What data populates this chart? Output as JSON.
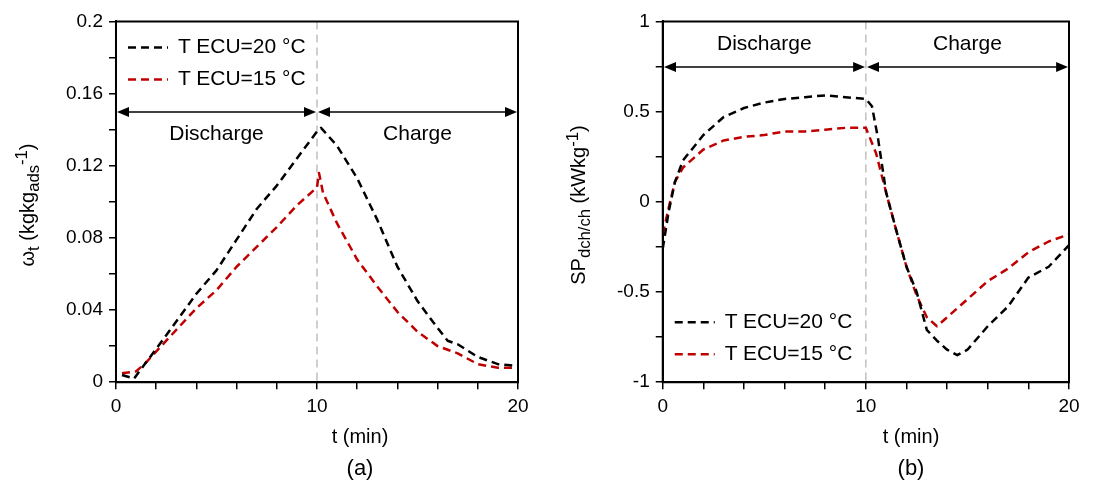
{
  "chart_data": [
    {
      "type": "line",
      "title": "(a)",
      "xlabel": "t (min)",
      "ylabel": "ω$_{t}$ (kgkg$_{ads}$$^{-1}$)",
      "xlim": [
        0,
        20
      ],
      "xticks": [
        0,
        {
          "value": 2,
          "label": null
        },
        {
          "value": 4,
          "label": null
        },
        {
          "value": 6,
          "label": null
        },
        {
          "value": 8,
          "label": null
        },
        10,
        {
          "value": 12,
          "label": null
        },
        {
          "value": 14,
          "label": null
        },
        {
          "value": 16,
          "label": null
        },
        {
          "value": 18,
          "label": null
        },
        20
      ],
      "ylim": [
        0,
        0.2
      ],
      "yticks": [
        0,
        {
          "value": 0.02,
          "label": null
        },
        0.04,
        {
          "value": 0.06,
          "label": null
        },
        0.08,
        {
          "value": 0.1,
          "label": null
        },
        0.12,
        {
          "value": 0.14,
          "label": null
        },
        0.16,
        {
          "value": 0.18,
          "label": null
        },
        0.2
      ],
      "legend": "top left",
      "marker": "none",
      "line_style": "dashed",
      "ref_lines": [
        {
          "axis": "x",
          "value": 10,
          "color": "#b0b0b0",
          "line_style": "dashed"
        }
      ],
      "annotations": [
        "Discharge",
        "Charge"
      ],
      "series": [
        {
          "name": "T ECU=20 °C",
          "color": "#000000",
          "x": [
            0.3,
            0.9,
            1.5,
            2.5,
            4,
            5,
            6,
            7,
            8,
            9,
            10,
            10.2,
            11,
            12,
            13,
            14,
            15,
            16,
            16.5,
            17,
            18,
            19,
            20
          ],
          "values": [
            0.004,
            0.002,
            0.011,
            0.026,
            0.049,
            0.062,
            0.079,
            0.096,
            0.109,
            0.124,
            0.139,
            0.141,
            0.131,
            0.113,
            0.09,
            0.064,
            0.045,
            0.03,
            0.023,
            0.021,
            0.014,
            0.01,
            0.009
          ]
        },
        {
          "name": "T ECU=15 °C",
          "color": "#c00000",
          "x": [
            0.3,
            1,
            1.5,
            2.5,
            4,
            5,
            6,
            7,
            8,
            9,
            10,
            10.1,
            10.3,
            11,
            12,
            13,
            14,
            15,
            16,
            17,
            18,
            19,
            20
          ],
          "values": [
            0.005,
            0.006,
            0.011,
            0.023,
            0.041,
            0.051,
            0.064,
            0.075,
            0.086,
            0.098,
            0.108,
            0.116,
            0.105,
            0.088,
            0.068,
            0.053,
            0.039,
            0.028,
            0.02,
            0.016,
            0.01,
            0.008,
            0.008
          ]
        }
      ]
    },
    {
      "type": "line",
      "title": "(b)",
      "xlabel": "t (min)",
      "ylabel": "SP$_{dch/ch}$ (kWkg$^{-1}$)",
      "xlim": [
        0,
        20
      ],
      "xticks": [
        0,
        {
          "value": 2,
          "label": null
        },
        {
          "value": 4,
          "label": null
        },
        {
          "value": 6,
          "label": null
        },
        {
          "value": 8,
          "label": null
        },
        10,
        {
          "value": 12,
          "label": null
        },
        {
          "value": 14,
          "label": null
        },
        {
          "value": 16,
          "label": null
        },
        {
          "value": 18,
          "label": null
        },
        20
      ],
      "ylim": [
        -1,
        1
      ],
      "yticks": [
        -1,
        {
          "value": -0.75,
          "label": null
        },
        -0.5,
        {
          "value": -0.25,
          "label": null
        },
        0,
        {
          "value": 0.25,
          "label": null
        },
        0.5,
        {
          "value": 0.75,
          "label": null
        },
        1
      ],
      "legend": "bottom left",
      "marker": "none",
      "line_style": "dashed",
      "ref_lines": [
        {
          "axis": "x",
          "value": 10,
          "color": "#b0b0b0",
          "line_style": "dashed"
        }
      ],
      "annotations": [
        "Discharge",
        "Charge"
      ],
      "series": [
        {
          "name": "T ECU=20 °C",
          "color": "#000000",
          "x": [
            0,
            0.3,
            0.6,
            1,
            2,
            3,
            4,
            5,
            6,
            7,
            8,
            9,
            10,
            10.3,
            10.6,
            11,
            11.5,
            12,
            12.5,
            13,
            13.5,
            14,
            14.5,
            15,
            16,
            17,
            18,
            19,
            20
          ],
          "values": [
            -0.26,
            -0.05,
            0.11,
            0.23,
            0.37,
            0.47,
            0.52,
            0.55,
            0.57,
            0.58,
            0.59,
            0.58,
            0.57,
            0.53,
            0.35,
            0.05,
            -0.16,
            -0.36,
            -0.5,
            -0.71,
            -0.77,
            -0.82,
            -0.85,
            -0.82,
            -0.69,
            -0.58,
            -0.42,
            -0.36,
            -0.24
          ]
        },
        {
          "name": "T ECU=15 °C",
          "color": "#c00000",
          "x": [
            0,
            0.3,
            0.6,
            1,
            2,
            3,
            4,
            5,
            6,
            7,
            8,
            9,
            10,
            10.5,
            11,
            11.5,
            12,
            12.5,
            13,
            13.5,
            14,
            15,
            16,
            17,
            18,
            19,
            20
          ],
          "values": [
            -0.18,
            -0.03,
            0.11,
            0.19,
            0.29,
            0.34,
            0.36,
            0.37,
            0.39,
            0.39,
            0.4,
            0.41,
            0.41,
            0.27,
            0.05,
            -0.16,
            -0.36,
            -0.52,
            -0.64,
            -0.69,
            -0.64,
            -0.54,
            -0.44,
            -0.37,
            -0.28,
            -0.22,
            -0.18
          ]
        }
      ]
    }
  ]
}
